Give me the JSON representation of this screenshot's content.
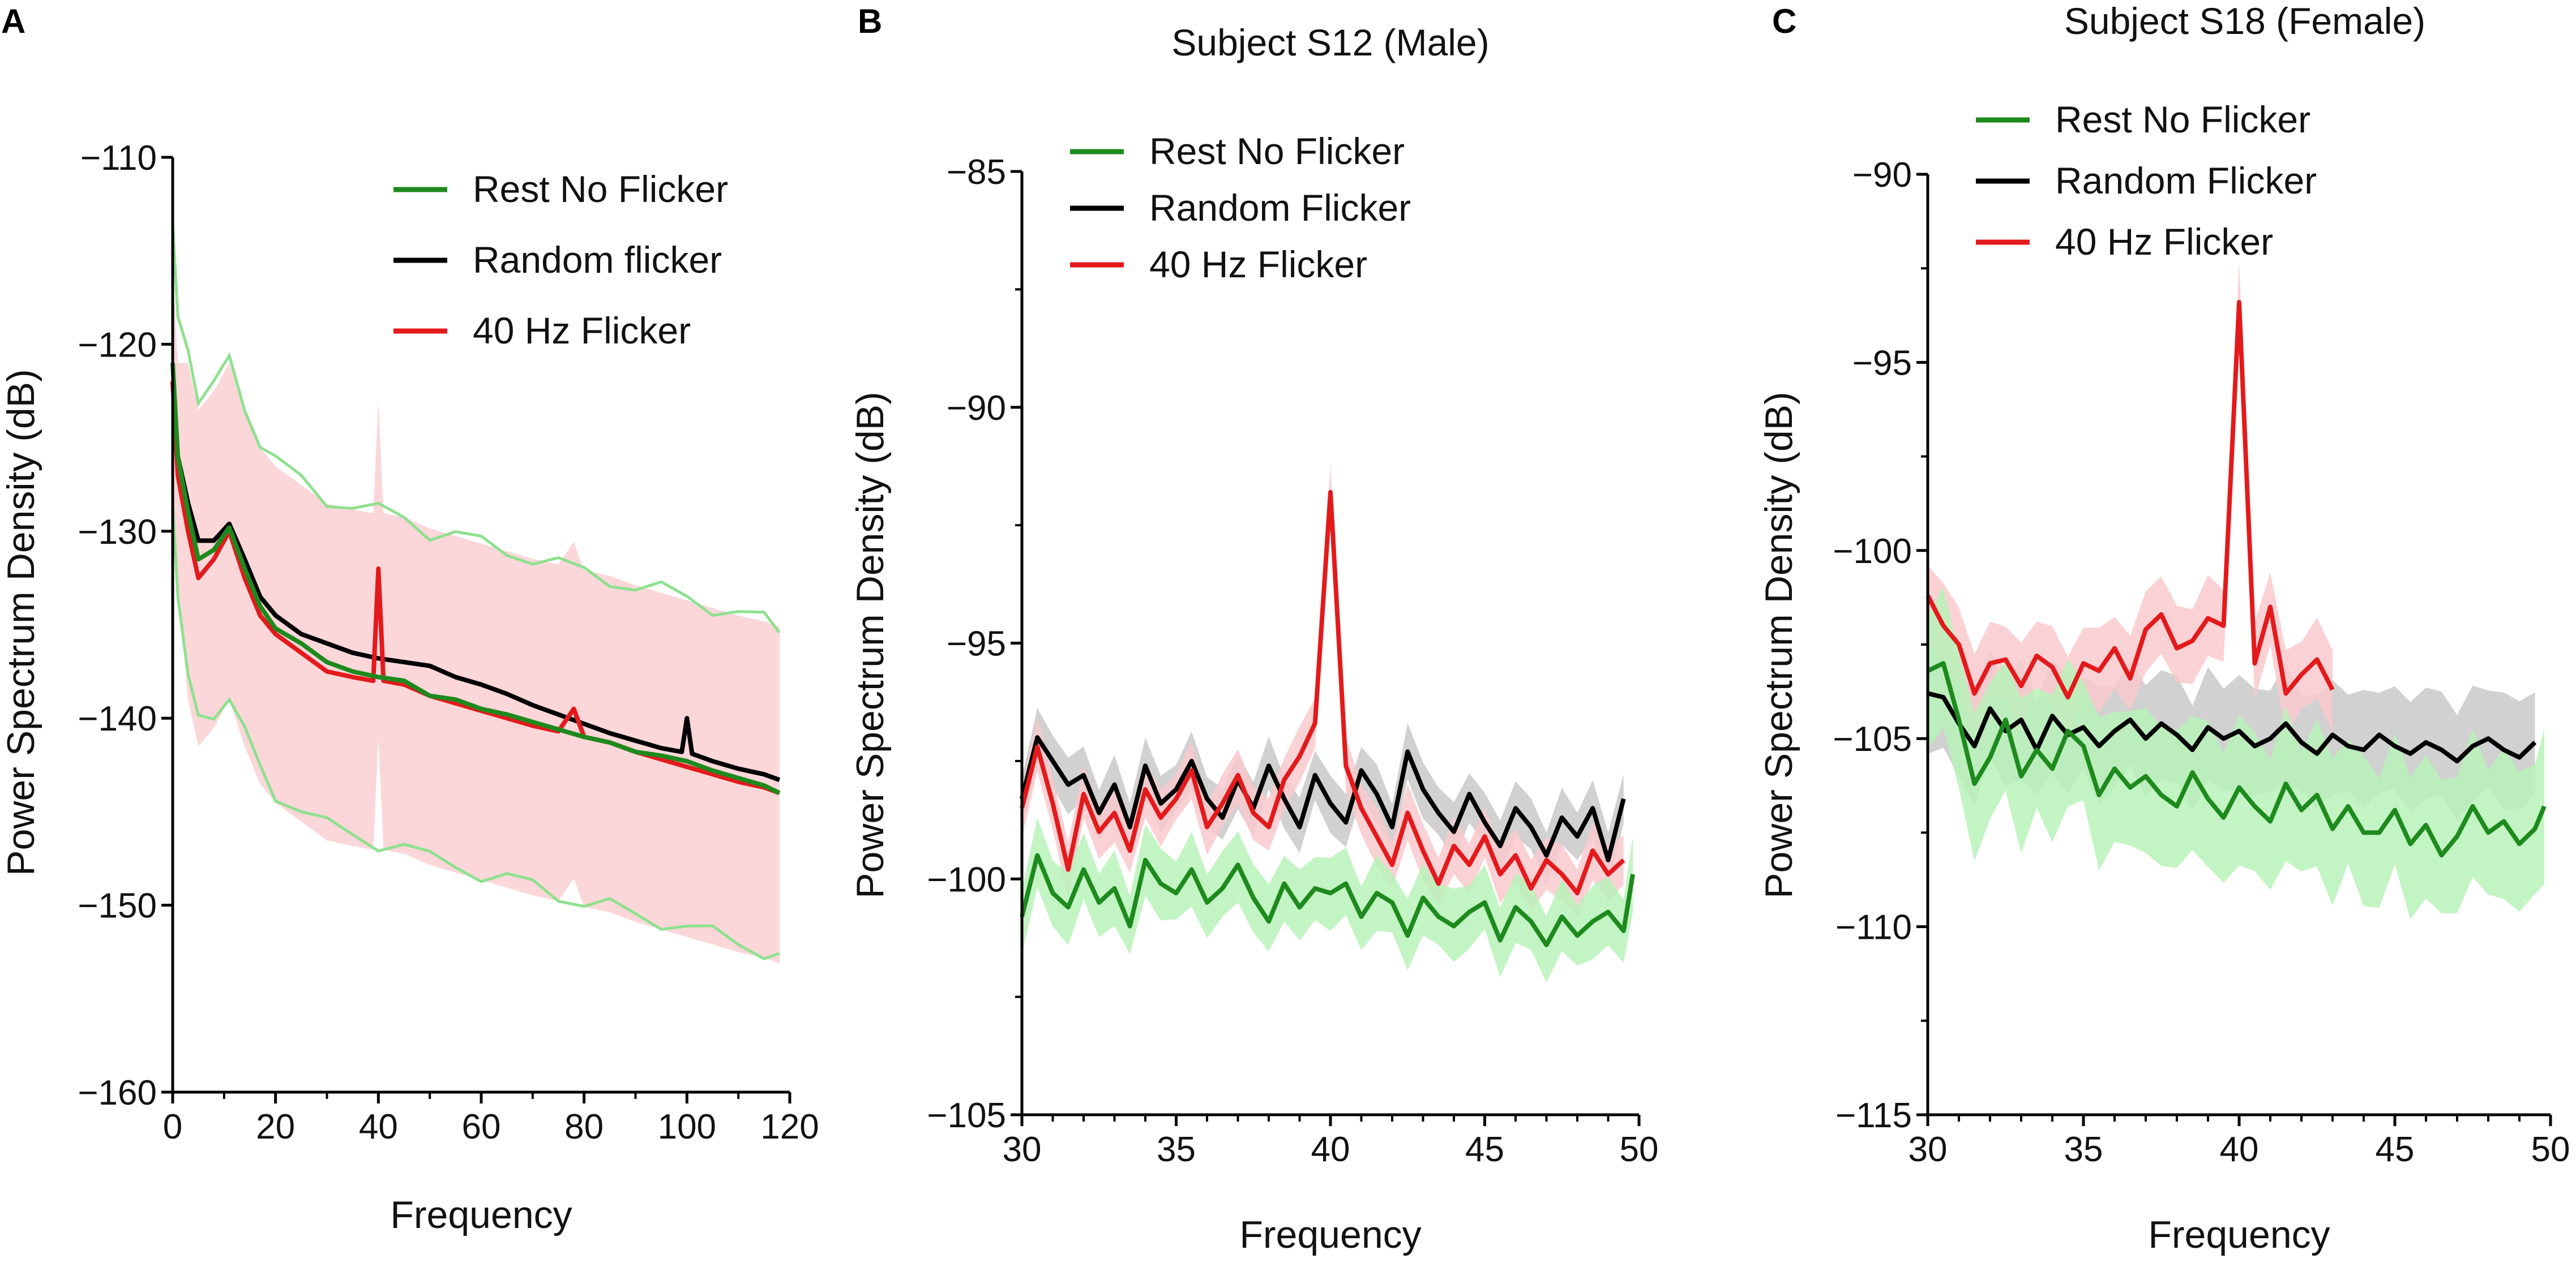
{
  "chart_data": [
    {
      "panel": "A",
      "type": "line",
      "title": "",
      "xlabel": "Frequency",
      "ylabel": "Power Spectrum Density (dB)",
      "xlim": [
        0,
        120
      ],
      "ylim": [
        -160,
        -110
      ],
      "xticks": [
        0,
        20,
        40,
        60,
        80,
        100,
        120
      ],
      "yticks": [
        -160,
        -150,
        -140,
        -130,
        -120,
        -110
      ],
      "legend": "top-right",
      "series": [
        {
          "name": "Rest No Flicker",
          "color": "#1e8a1e",
          "x": [
            0,
            1,
            3,
            5,
            8,
            11,
            14,
            17,
            20,
            25,
            30,
            35,
            40,
            45,
            50,
            55,
            60,
            65,
            70,
            75,
            80,
            85,
            90,
            95,
            100,
            105,
            110,
            115,
            118
          ],
          "y": [
            -121,
            -126,
            -129,
            -131.5,
            -131,
            -129.8,
            -132,
            -134,
            -135.2,
            -136,
            -137,
            -137.5,
            -137.8,
            -138,
            -138.8,
            -139,
            -139.5,
            -139.8,
            -140.2,
            -140.6,
            -141,
            -141.3,
            -141.8,
            -142,
            -142.3,
            -142.8,
            -143.2,
            -143.6,
            -144
          ]
        },
        {
          "name": "Random flicker",
          "color": "#000000",
          "x": [
            0,
            1,
            3,
            5,
            8,
            11,
            14,
            17,
            20,
            25,
            30,
            35,
            40,
            45,
            50,
            55,
            60,
            65,
            70,
            75,
            80,
            85,
            90,
            95,
            99,
            100,
            101,
            105,
            110,
            115,
            118
          ],
          "y": [
            -122,
            -126,
            -128.5,
            -130.5,
            -130.5,
            -129.6,
            -131.5,
            -133.5,
            -134.5,
            -135.5,
            -136,
            -136.5,
            -136.8,
            -137,
            -137.2,
            -137.8,
            -138.2,
            -138.7,
            -139.3,
            -139.8,
            -140.3,
            -140.8,
            -141.2,
            -141.6,
            -141.8,
            -140,
            -141.9,
            -142.3,
            -142.7,
            -143,
            -143.3
          ]
        },
        {
          "name": "40 Hz Flicker",
          "color": "#e31a1c",
          "x": [
            0,
            1,
            3,
            5,
            8,
            11,
            14,
            17,
            20,
            25,
            30,
            35,
            39,
            40,
            41,
            45,
            50,
            55,
            60,
            65,
            70,
            75,
            78,
            80,
            85,
            90,
            95,
            100,
            105,
            110,
            115,
            118
          ],
          "y": [
            -122,
            -127,
            -130,
            -132.5,
            -131.5,
            -130,
            -132.5,
            -134.5,
            -135.5,
            -136.5,
            -137.5,
            -137.8,
            -138,
            -132,
            -138,
            -138.2,
            -138.8,
            -139.2,
            -139.6,
            -140,
            -140.4,
            -140.7,
            -139.5,
            -141,
            -141.3,
            -141.8,
            -142.2,
            -142.6,
            -143,
            -143.4,
            -143.7,
            -144
          ]
        }
      ]
    },
    {
      "panel": "B",
      "type": "line",
      "title": "Subject S12 (Male)",
      "xlabel": "Frequency",
      "ylabel": "Power Spectrum Density (dB)",
      "xlim": [
        30,
        50
      ],
      "ylim": [
        -105,
        -85
      ],
      "xticks": [
        30,
        35,
        40,
        45,
        50
      ],
      "yticks": [
        -105,
        -100,
        -95,
        -90,
        -85
      ],
      "legend": "top-left",
      "series": [
        {
          "name": "Rest No Flicker",
          "color": "#1e8a1e",
          "x": [
            30,
            30.5,
            31,
            31.5,
            32,
            32.5,
            33,
            33.5,
            34,
            34.5,
            35,
            35.5,
            36,
            36.5,
            37,
            37.5,
            38,
            38.5,
            39,
            39.5,
            40,
            40.5,
            41,
            41.5,
            42,
            42.5,
            43,
            43.5,
            44,
            44.5,
            45,
            45.5,
            46,
            46.5,
            47,
            47.5,
            48,
            48.5,
            49,
            49.5,
            49.8
          ],
          "y": [
            -100.8,
            -99.5,
            -100.3,
            -100.6,
            -99.8,
            -100.5,
            -100.2,
            -101,
            -99.6,
            -100.1,
            -100.3,
            -99.8,
            -100.5,
            -100.2,
            -99.7,
            -100.4,
            -100.9,
            -100.1,
            -100.6,
            -100.2,
            -100.3,
            -100.1,
            -100.8,
            -100.3,
            -100.5,
            -101.2,
            -100.4,
            -100.8,
            -101,
            -100.7,
            -100.5,
            -101.3,
            -100.6,
            -100.9,
            -101.4,
            -100.8,
            -101.2,
            -100.9,
            -100.7,
            -101.1,
            -99.9
          ]
        },
        {
          "name": "Random Flicker",
          "color": "#000000",
          "x": [
            30,
            30.5,
            31,
            31.5,
            32,
            32.5,
            33,
            33.5,
            34,
            34.5,
            35,
            35.5,
            36,
            36.5,
            37,
            37.5,
            38,
            38.5,
            39,
            39.5,
            40,
            40.5,
            41,
            41.5,
            42,
            42.5,
            43,
            43.5,
            44,
            44.5,
            45,
            45.5,
            46,
            46.5,
            47,
            47.5,
            48,
            48.5,
            49,
            49.5
          ],
          "y": [
            -98.3,
            -97,
            -97.5,
            -98,
            -97.8,
            -98.6,
            -98,
            -98.9,
            -97.6,
            -98.4,
            -98.1,
            -97.5,
            -98.3,
            -98.7,
            -97.9,
            -98.5,
            -97.6,
            -98.3,
            -98.9,
            -97.8,
            -98.4,
            -98.8,
            -97.7,
            -98.2,
            -98.9,
            -97.3,
            -98.1,
            -98.6,
            -99,
            -98.2,
            -98.8,
            -99.3,
            -98.5,
            -98.9,
            -99.5,
            -98.7,
            -99.1,
            -98.5,
            -99.6,
            -98.3
          ]
        },
        {
          "name": "40 Hz Flicker",
          "color": "#e31a1c",
          "x": [
            30,
            30.5,
            31,
            31.5,
            32,
            32.5,
            33,
            33.5,
            34,
            34.5,
            35,
            35.5,
            36,
            36.5,
            37,
            37.5,
            38,
            38.5,
            39,
            39.5,
            40,
            40.5,
            41,
            41.5,
            42,
            42.5,
            43,
            43.5,
            44,
            44.5,
            45,
            45.5,
            46,
            46.5,
            47,
            47.5,
            48,
            48.5,
            49,
            49.5
          ],
          "y": [
            -98.5,
            -97.2,
            -98.4,
            -99.8,
            -98.2,
            -99,
            -98.6,
            -99.4,
            -98.1,
            -98.7,
            -98.3,
            -97.7,
            -98.9,
            -98.4,
            -97.8,
            -98.6,
            -98.9,
            -97.9,
            -97.4,
            -96.7,
            -91.8,
            -97.6,
            -98.5,
            -99.1,
            -99.7,
            -98.6,
            -99.4,
            -100.1,
            -99.3,
            -99.7,
            -99.1,
            -99.9,
            -99.5,
            -100.2,
            -99.6,
            -99.9,
            -100.3,
            -99.4,
            -99.9,
            -99.6
          ]
        }
      ]
    },
    {
      "panel": "C",
      "type": "line",
      "title": "Subject S18 (Female)",
      "xlabel": "Frequency",
      "ylabel": "Power Spectrum Density (dB)",
      "xlim": [
        30,
        50
      ],
      "ylim": [
        -115,
        -90
      ],
      "xticks": [
        30,
        35,
        40,
        45,
        50
      ],
      "yticks": [
        -115,
        -110,
        -105,
        -100,
        -95,
        -90
      ],
      "legend": "top-left",
      "series": [
        {
          "name": "Rest No Flicker",
          "color": "#1e8a1e",
          "x": [
            30,
            30.5,
            31,
            31.5,
            32,
            32.5,
            33,
            33.5,
            34,
            34.5,
            35,
            35.5,
            36,
            36.5,
            37,
            37.5,
            38,
            38.5,
            39,
            39.5,
            40,
            40.5,
            41,
            41.5,
            42,
            42.5,
            43,
            43.5,
            44,
            44.5,
            45,
            45.5,
            46,
            46.5,
            47,
            47.5,
            48,
            48.5,
            49,
            49.5,
            49.8
          ],
          "y": [
            -103.2,
            -103,
            -104.5,
            -106.2,
            -105.5,
            -104.5,
            -106,
            -105.3,
            -105.8,
            -104.8,
            -105.2,
            -106.5,
            -105.8,
            -106.3,
            -106,
            -106.5,
            -106.8,
            -105.9,
            -106.6,
            -107.1,
            -106.3,
            -106.8,
            -107.2,
            -106.2,
            -106.9,
            -106.5,
            -107.4,
            -106.8,
            -107.5,
            -107.5,
            -106.9,
            -107.8,
            -107.3,
            -108.1,
            -107.6,
            -106.8,
            -107.5,
            -107.2,
            -107.8,
            -107.4,
            -106.8
          ]
        },
        {
          "name": "Random Flicker",
          "color": "#000000",
          "x": [
            30,
            30.5,
            31,
            31.5,
            32,
            32.5,
            33,
            33.5,
            34,
            34.5,
            35,
            35.5,
            36,
            36.5,
            37,
            37.5,
            38,
            38.5,
            39,
            39.5,
            40,
            40.5,
            41,
            41.5,
            42,
            42.5,
            43,
            43.5,
            44,
            44.5,
            45,
            45.5,
            46,
            46.5,
            47,
            47.5,
            48,
            48.5,
            49,
            49.5
          ],
          "y": [
            -103.8,
            -103.9,
            -104.6,
            -105.2,
            -104.2,
            -104.8,
            -104.5,
            -105.3,
            -104.4,
            -104.9,
            -104.7,
            -105.2,
            -104.8,
            -104.5,
            -105,
            -104.6,
            -104.9,
            -105.3,
            -104.7,
            -105,
            -104.8,
            -105.2,
            -105,
            -104.6,
            -105.1,
            -105.4,
            -104.9,
            -105.2,
            -105.3,
            -104.9,
            -105.2,
            -105.4,
            -105.1,
            -105.3,
            -105.6,
            -105.2,
            -105,
            -105.3,
            -105.5,
            -105.1
          ]
        },
        {
          "name": "40 Hz Flicker",
          "color": "#e31a1c",
          "x": [
            30,
            30.5,
            31,
            31.5,
            32,
            32.5,
            33,
            33.5,
            34,
            34.5,
            35,
            35.5,
            36,
            36.5,
            37,
            37.5,
            38,
            38.5,
            39,
            39.5,
            40,
            40.5,
            41,
            41.5,
            42,
            42.5,
            43
          ],
          "y": [
            -101.2,
            -102,
            -102.5,
            -103.8,
            -103,
            -102.9,
            -103.6,
            -102.8,
            -103.1,
            -103.9,
            -103,
            -103.2,
            -102.6,
            -103.4,
            -102.1,
            -101.7,
            -102.6,
            -102.4,
            -101.8,
            -102,
            -93.4,
            -103,
            -101.5,
            -103.8,
            -103.3,
            -102.9,
            -103.7
          ]
        }
      ]
    }
  ],
  "panels": {
    "A": {
      "letter": "A",
      "legend": [
        "Rest No Flicker",
        "Random flicker",
        "40 Hz Flicker"
      ]
    },
    "B": {
      "letter": "B",
      "legend": [
        "Rest No Flicker",
        "Random Flicker",
        "40 Hz Flicker"
      ]
    },
    "C": {
      "letter": "C",
      "legend": [
        "Rest No Flicker",
        "Random Flicker",
        "40 Hz Flicker"
      ]
    }
  },
  "colors": {
    "green": "#1e8a1e",
    "black": "#000000",
    "red": "#e31a1c",
    "green_band": "#b8f2b8",
    "green_edge": "#8fe08f",
    "red_band": "#f9c9cc",
    "grey_band": "#c9c9c9"
  }
}
